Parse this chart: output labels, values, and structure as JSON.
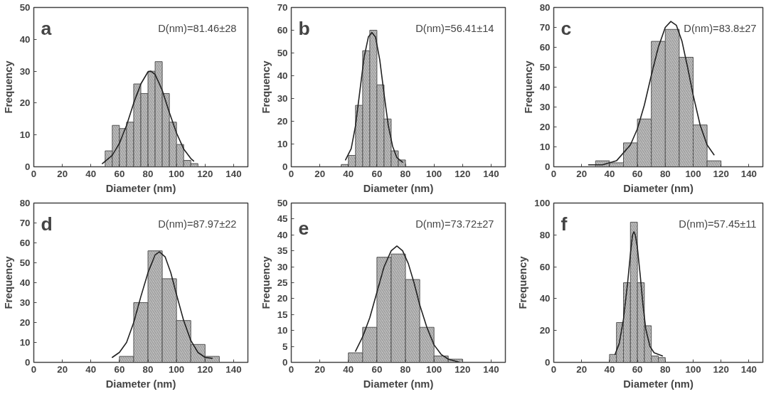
{
  "chart_data": [
    {
      "type": "histogram",
      "xlabel": "Diameter (nm)",
      "ylabel": "Frequency",
      "annotations": [
        "a",
        "D(nm)=81.46±28"
      ],
      "xlim": [
        0,
        150
      ],
      "ylim": [
        0,
        50
      ],
      "xticks": [
        0,
        20,
        40,
        60,
        80,
        100,
        120,
        140
      ],
      "yticks": [
        0,
        10,
        20,
        30,
        40,
        50
      ],
      "grid": false,
      "series": [
        {
          "type": "histogram",
          "color": "#c8c8c8",
          "bins": [
            50,
            55,
            60,
            65,
            70,
            75,
            80,
            85,
            90,
            95,
            100,
            105,
            110,
            115
          ],
          "values": [
            5,
            13,
            12,
            14,
            26,
            23,
            30,
            33,
            23,
            14,
            7,
            2,
            1
          ]
        },
        {
          "type": "line",
          "color": "#222222",
          "x": [
            48,
            55,
            60,
            65,
            70,
            75,
            80,
            82,
            85,
            90,
            95,
            100,
            105,
            110,
            112
          ],
          "values": [
            1,
            3.6,
            7.4,
            13,
            20,
            26,
            29.8,
            30,
            29,
            24,
            17,
            10.6,
            5.6,
            2.6,
            1.8
          ]
        }
      ]
    },
    {
      "type": "histogram",
      "xlabel": "Diameter (nm)",
      "ylabel": "Frequency",
      "annotations": [
        "b",
        "D(nm)=56.41±14"
      ],
      "xlim": [
        0,
        150
      ],
      "ylim": [
        0,
        70
      ],
      "xticks": [
        0,
        20,
        40,
        60,
        80,
        100,
        120,
        140
      ],
      "yticks": [
        0,
        10,
        20,
        30,
        40,
        50,
        60,
        70
      ],
      "grid": false,
      "series": [
        {
          "type": "histogram",
          "color": "#c8c8c8",
          "bins": [
            35,
            40,
            45,
            50,
            55,
            60,
            65,
            70,
            75,
            80
          ],
          "values": [
            1,
            5,
            27,
            51,
            60,
            36,
            21,
            7,
            3
          ]
        },
        {
          "type": "line",
          "color": "#222222",
          "x": [
            38,
            42,
            45,
            48,
            51,
            54,
            56.5,
            59,
            62,
            65,
            68,
            71,
            74,
            78
          ],
          "values": [
            3,
            8,
            18,
            33,
            48,
            57,
            59,
            57,
            47,
            32,
            18,
            9,
            4,
            2
          ]
        }
      ]
    },
    {
      "type": "histogram",
      "xlabel": "Diameter (nm)",
      "ylabel": "Frequency",
      "annotations": [
        "c",
        "D(nm)=83.8±27"
      ],
      "xlim": [
        0,
        150
      ],
      "ylim": [
        0,
        80
      ],
      "xticks": [
        0,
        20,
        40,
        60,
        80,
        100,
        120,
        140
      ],
      "yticks": [
        0,
        10,
        20,
        30,
        40,
        50,
        60,
        70,
        80
      ],
      "grid": false,
      "series": [
        {
          "type": "histogram",
          "color": "#c8c8c8",
          "bins": [
            30,
            40,
            50,
            60,
            70,
            80,
            90,
            100,
            110,
            120
          ],
          "values": [
            3,
            2,
            12,
            24,
            63,
            69,
            55,
            21,
            3
          ]
        },
        {
          "type": "line",
          "color": "#222222",
          "x": [
            25,
            35,
            45,
            55,
            60,
            65,
            70,
            75,
            80,
            84,
            88,
            92,
            96,
            100,
            105,
            110,
            115
          ],
          "values": [
            1,
            1,
            3,
            11,
            19,
            31,
            46,
            60,
            70,
            73,
            71,
            63,
            50,
            36,
            21,
            11,
            6
          ]
        }
      ]
    },
    {
      "type": "histogram",
      "xlabel": "Diameter (nm)",
      "ylabel": "Frequency",
      "annotations": [
        "d",
        "D(nm)=87.97±22"
      ],
      "xlim": [
        0,
        150
      ],
      "ylim": [
        0,
        80
      ],
      "xticks": [
        0,
        20,
        40,
        60,
        80,
        100,
        120,
        140
      ],
      "yticks": [
        0,
        10,
        20,
        30,
        40,
        50,
        60,
        70,
        80
      ],
      "grid": false,
      "series": [
        {
          "type": "histogram",
          "color": "#c8c8c8",
          "bins": [
            60,
            70,
            80,
            90,
            100,
            110,
            120,
            130
          ],
          "values": [
            3,
            30,
            56,
            42,
            21,
            9,
            3
          ]
        },
        {
          "type": "line",
          "color": "#222222",
          "x": [
            55,
            60,
            65,
            70,
            75,
            80,
            85,
            88,
            92,
            96,
            100,
            105,
            110,
            115,
            120,
            125
          ],
          "values": [
            2.5,
            5,
            10,
            20,
            33,
            45,
            54,
            55.5,
            53,
            45,
            34,
            21,
            11,
            5,
            2.5,
            2
          ]
        }
      ]
    },
    {
      "type": "histogram",
      "xlabel": "Diameter (nm)",
      "ylabel": "Frequency",
      "annotations": [
        "e",
        "D(nm)=73.72±27"
      ],
      "xlim": [
        0,
        150
      ],
      "ylim": [
        0,
        50
      ],
      "xticks": [
        0,
        20,
        40,
        60,
        80,
        100,
        120,
        140
      ],
      "yticks": [
        0,
        5,
        10,
        15,
        20,
        25,
        30,
        35,
        40,
        45,
        50
      ],
      "grid": false,
      "series": [
        {
          "type": "histogram",
          "color": "#c8c8c8",
          "bins": [
            40,
            50,
            60,
            70,
            80,
            90,
            100,
            110,
            120
          ],
          "values": [
            3,
            11,
            33,
            34,
            26,
            11,
            2,
            1
          ]
        },
        {
          "type": "line",
          "color": "#222222",
          "x": [
            45,
            50,
            55,
            60,
            65,
            70,
            74,
            78,
            82,
            86,
            90,
            95,
            100,
            105,
            110,
            118
          ],
          "values": [
            3.5,
            8,
            14,
            22,
            30,
            35,
            36.5,
            35,
            31,
            25,
            18,
            11,
            5.5,
            2.5,
            1,
            0
          ]
        }
      ]
    },
    {
      "type": "histogram",
      "xlabel": "Diameter (nm)",
      "ylabel": "Frequency",
      "annotations": [
        "f",
        "D(nm)=57.45±11"
      ],
      "xlim": [
        0,
        150
      ],
      "ylim": [
        0,
        100
      ],
      "xticks": [
        0,
        20,
        40,
        60,
        80,
        100,
        120,
        140
      ],
      "yticks": [
        0,
        20,
        40,
        60,
        80,
        100
      ],
      "grid": false,
      "series": [
        {
          "type": "histogram",
          "color": "#c8c8c8",
          "bins": [
            40,
            45,
            50,
            55,
            60,
            65,
            70,
            75,
            80
          ],
          "values": [
            5,
            25,
            50,
            88,
            50,
            23,
            4,
            3
          ]
        },
        {
          "type": "line",
          "color": "#222222",
          "x": [
            44,
            47,
            50,
            53,
            55,
            56.5,
            57.5,
            58.5,
            60,
            62,
            64,
            66,
            69,
            72,
            75,
            78
          ],
          "values": [
            5,
            12,
            27,
            50,
            68,
            80,
            82,
            80,
            72,
            55,
            36,
            21,
            10,
            6,
            5,
            4
          ]
        }
      ]
    }
  ]
}
